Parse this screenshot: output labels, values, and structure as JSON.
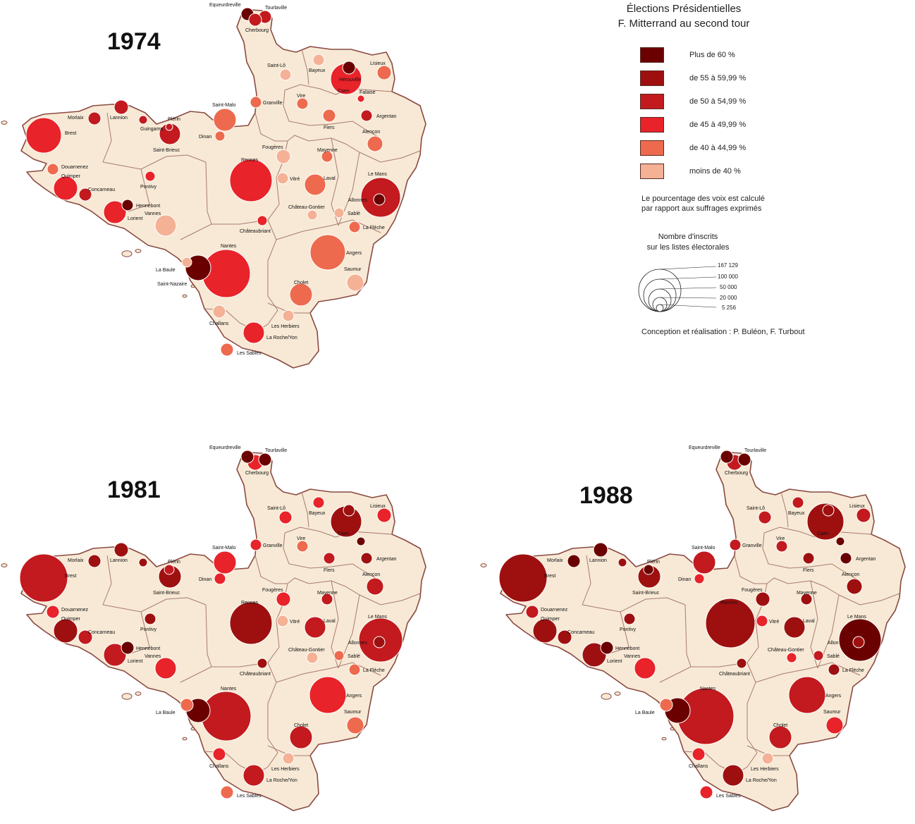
{
  "legend": {
    "title_line1": "Élections Présidentielles",
    "title_line2": "F. Mitterrand au second tour",
    "classes": [
      {
        "label": "Plus de 60 %",
        "color": "#6b0000"
      },
      {
        "label": "de 55 à 59,99 %",
        "color": "#9e1010"
      },
      {
        "label": "de 50 à 54,99 %",
        "color": "#c21a1e"
      },
      {
        "label": "de 45 à 49,99 %",
        "color": "#e8232a"
      },
      {
        "label": "de 40 à 44,99 %",
        "color": "#ee6a4e"
      },
      {
        "label": "moins de 40 %",
        "color": "#f4b196"
      }
    ],
    "note_line1": "Le pourcentage des voix est calculé",
    "note_line2": "par rapport aux suffrages exprimés",
    "size_title_line1": "Nombre d'inscrits",
    "size_title_line2": "sur les listes électorales",
    "size_values": [
      "167 129",
      "100 000",
      "50 000",
      "20 000",
      "5 256"
    ],
    "credit": "Conception et réalisation : P. Buléon,  F. Turbout"
  },
  "colors": {
    "land": "#f7e9d5",
    "border": "#8a4a42",
    "inner_border": "#a87a70",
    "circle_stroke": "#ffffff"
  },
  "maps": [
    {
      "year": "1974"
    },
    {
      "year": "1981"
    },
    {
      "year": "1988"
    }
  ],
  "cities": [
    {
      "name": "Equeurdreville"
    },
    {
      "name": "Tourlaville"
    },
    {
      "name": "Cherbourg"
    },
    {
      "name": "Saint-Lô"
    },
    {
      "name": "Bayeux"
    },
    {
      "name": "Hérouville"
    },
    {
      "name": "Lisieux"
    },
    {
      "name": "Caen"
    },
    {
      "name": "Falaise"
    },
    {
      "name": "Granville"
    },
    {
      "name": "Vire"
    },
    {
      "name": "Argentan"
    },
    {
      "name": "Flers"
    },
    {
      "name": "Alençon"
    },
    {
      "name": "Morlaix"
    },
    {
      "name": "Lannion"
    },
    {
      "name": "Plérin"
    },
    {
      "name": "Guingamp"
    },
    {
      "name": "Saint-Malo"
    },
    {
      "name": "Brest"
    },
    {
      "name": "Dinan"
    },
    {
      "name": "Saint-Brieuc"
    },
    {
      "name": "Fougères"
    },
    {
      "name": "Mayenne"
    },
    {
      "name": "Douarnenez"
    },
    {
      "name": "Quimper"
    },
    {
      "name": "Rennes"
    },
    {
      "name": "Vitré"
    },
    {
      "name": "Laval"
    },
    {
      "name": "Le Mans"
    },
    {
      "name": "Concarneau"
    },
    {
      "name": "Pontivy"
    },
    {
      "name": "Hennebont"
    },
    {
      "name": "Allonnes"
    },
    {
      "name": "Château-Gontier"
    },
    {
      "name": "Sablé"
    },
    {
      "name": "Lorient"
    },
    {
      "name": "Vannes"
    },
    {
      "name": "La Flèche"
    },
    {
      "name": "Châteaubriant"
    },
    {
      "name": "Nantes"
    },
    {
      "name": "Angers"
    },
    {
      "name": "La Baule"
    },
    {
      "name": "Saint-Nazaire"
    },
    {
      "name": "Saumur"
    },
    {
      "name": "Cholet"
    },
    {
      "name": "Challans"
    },
    {
      "name": "Les Herbiers"
    },
    {
      "name": "La Roche/Yon"
    },
    {
      "name": "Les Sables"
    },
    {
      "name": "Allon"
    }
  ]
}
